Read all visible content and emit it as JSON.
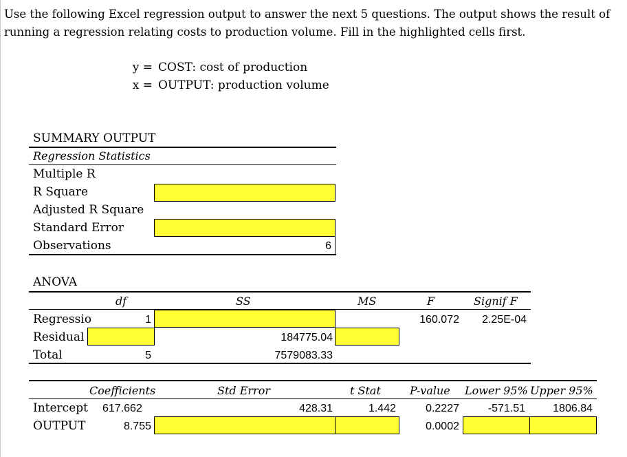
{
  "intro": {
    "line1": "Use the following Excel regression output to answer the next 5 questions.  The output shows the result of",
    "line2": "running a regression relating costs to production volume.  Fill in the highlighted cells first."
  },
  "variables": {
    "y_label": "y =",
    "y_desc": "COST:  cost of production",
    "x_label": "x =",
    "x_desc": "OUTPUT:  production volume"
  },
  "summary": {
    "title": "SUMMARY OUTPUT",
    "stats_header": "Regression Statistics",
    "multiple_r": "Multiple R",
    "r_square": "R Square",
    "adj_r_square": "Adjusted R Square",
    "std_error": "Standard Error",
    "observations": "Observations",
    "observations_value": "6"
  },
  "anova": {
    "title": "ANOVA",
    "headers": {
      "df": "df",
      "ss": "SS",
      "ms": "MS",
      "f": "F",
      "signif": "Signif F"
    },
    "regression": {
      "label": "Regressio",
      "df": "1",
      "f": "160.072",
      "signif": "2.25E-04"
    },
    "residual": {
      "label": "Residual",
      "ss": "184775.04"
    },
    "total": {
      "label": "Total",
      "df": "5",
      "ss": "7579083.33"
    }
  },
  "coefficients": {
    "headers": {
      "coef": "Coefficients",
      "se": "Std Error",
      "t": "t Stat",
      "p": "P-value",
      "lower": "Lower 95%",
      "upper": "Upper 95%"
    },
    "intercept": {
      "label": "Intercept",
      "coef": "617.662",
      "se": "428.31",
      "t": "1.442",
      "p": "0.2227",
      "lower": "-571.51",
      "upper": "1806.84"
    },
    "output": {
      "label": "OUTPUT",
      "coef": "8.755",
      "p": "0.0002"
    }
  },
  "colors": {
    "highlight": "#ffff33"
  }
}
